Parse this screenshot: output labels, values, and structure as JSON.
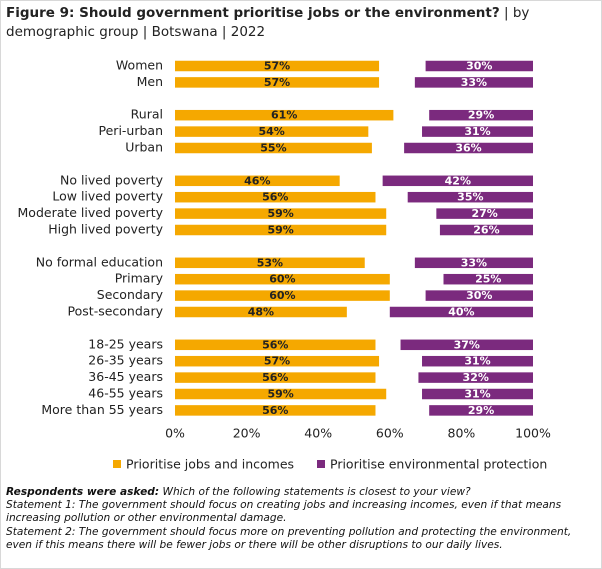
{
  "chart_data": {
    "type": "bar",
    "title": "Figure 9: Should government prioritise jobs or the environment?",
    "subtitle": "| by demographic group | Botswana | 2022",
    "categories": [
      "Women",
      "Men",
      null,
      "Rural",
      "Peri-urban",
      "Urban",
      null,
      "No lived poverty",
      "Low lived poverty",
      "Moderate lived poverty",
      "High lived poverty",
      null,
      "No formal education",
      "Primary",
      "Secondary",
      "Post-secondary",
      null,
      "18-25 years",
      "26-35 years",
      "36-45 years",
      "46-55 years",
      "More than 55 years"
    ],
    "series": [
      {
        "name": "Prioritise jobs and incomes",
        "color": "#f5a800",
        "values": [
          57,
          57,
          null,
          61,
          54,
          55,
          null,
          46,
          56,
          59,
          59,
          null,
          53,
          60,
          60,
          48,
          null,
          56,
          57,
          56,
          59,
          56
        ],
        "value_labels": [
          "57%",
          "57%",
          null,
          "61%",
          "54%",
          "55%",
          null,
          "46%",
          "56%",
          "59%",
          "59%",
          null,
          "53%",
          "60%",
          "60%",
          "48%",
          null,
          "56%",
          "57%",
          "56%",
          "59%",
          "56%"
        ]
      },
      {
        "name": "Prioritise environmental protection",
        "color": "#7b2a7e",
        "values": [
          30,
          33,
          null,
          29,
          31,
          36,
          null,
          42,
          35,
          27,
          26,
          null,
          33,
          25,
          30,
          40,
          null,
          37,
          31,
          32,
          31,
          29
        ],
        "value_labels": [
          "30%",
          "33%",
          null,
          "29%",
          "31%",
          "36%",
          null,
          "42%",
          "35%",
          "27%",
          "26%",
          null,
          "33%",
          "25%",
          "30%",
          "40%",
          null,
          "37%",
          "31%",
          "32%",
          "31%",
          "29%"
        ]
      }
    ],
    "xlim": [
      0,
      100
    ],
    "xticks": [
      {
        "value": 0,
        "label": "0%"
      },
      {
        "value": 20,
        "label": "20%"
      },
      {
        "value": 40,
        "label": "40%"
      },
      {
        "value": 60,
        "label": "60%"
      },
      {
        "value": 80,
        "label": "80%"
      },
      {
        "value": 100,
        "label": "100%"
      }
    ],
    "legend": "bottom",
    "note_label": "Respondents were asked:",
    "notes": [
      "Which of the following statements is closest to your view?",
      "Statement 1: The government should focus on creating jobs and increasing incomes, even if that means increasing pollution or other environmental damage.",
      "Statement 2: The government should focus more on preventing pollution and protecting the environment, even if this means there will be fewer jobs or there will be other disruptions to our daily lives."
    ]
  }
}
